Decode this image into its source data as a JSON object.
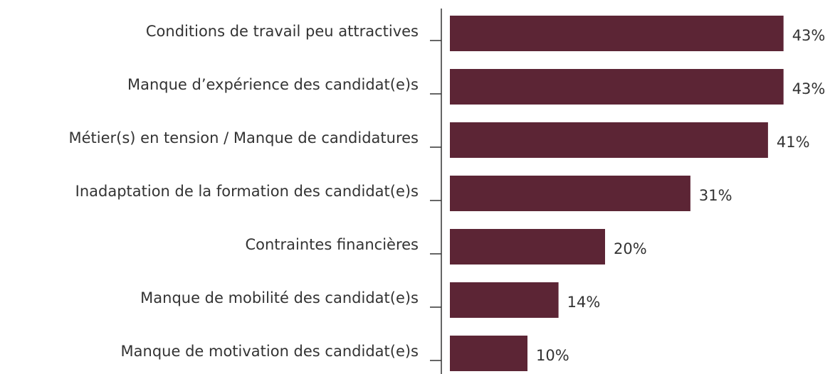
{
  "chart_data": {
    "type": "hbar",
    "categories": [
      "Conditions de travail peu attractives",
      "Manque d’expérience des candidat(e)s",
      "Métier(s) en tension / Manque de candidatures",
      "Inadaptation de la formation des candidat(e)s",
      "Contraintes financières",
      "Manque de mobilité des candidat(e)s",
      "Manque de motivation des candidat(e)s"
    ],
    "values": [
      43,
      43,
      41,
      31,
      20,
      14,
      10
    ],
    "value_labels": [
      "43%",
      "43%",
      "41%",
      "31%",
      "20%",
      "14%",
      "10%"
    ],
    "color": "#5c2535"
  }
}
